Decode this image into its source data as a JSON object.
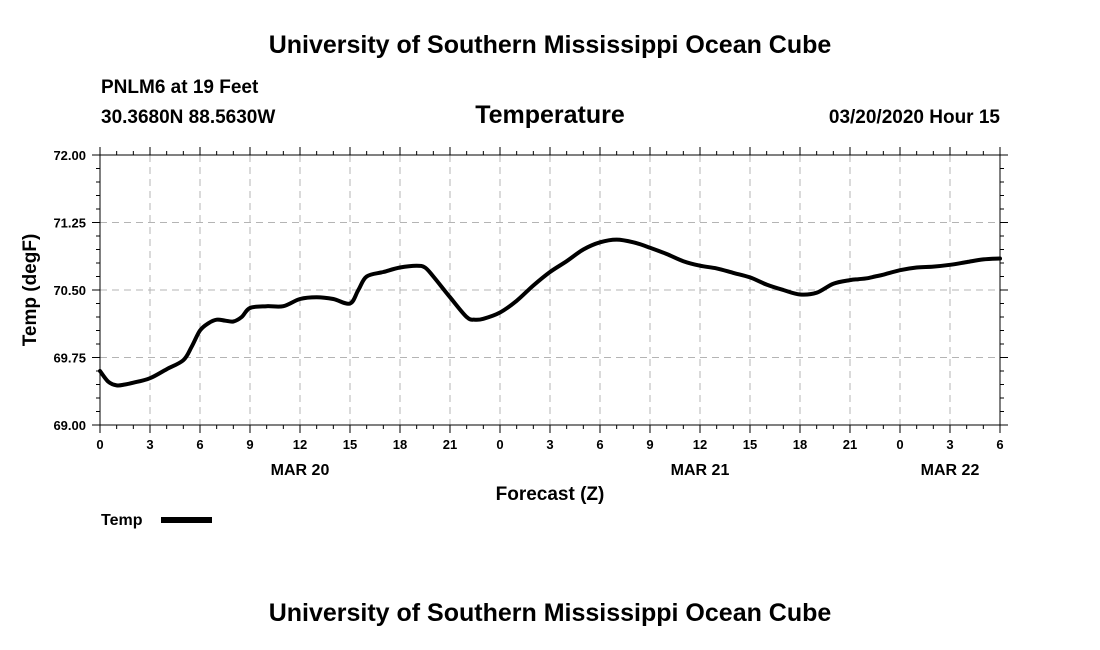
{
  "header": {
    "title": "University of Southern Mississippi Ocean Cube",
    "station": "PNLM6 at 19 Feet",
    "coords": "30.3680N 88.5630W",
    "datetime": "03/20/2020 Hour 15"
  },
  "footer": {
    "title": "University of Southern Mississippi Ocean Cube"
  },
  "colors": {
    "line": "#000000",
    "grid": "#b4b4b4"
  },
  "chart_data": {
    "type": "line",
    "title": "Temperature",
    "ylabel": "Temp (degF)",
    "xlabel": "Forecast (Z)",
    "ylim": [
      69.0,
      72.0
    ],
    "yticks": [
      "69.00",
      "69.75",
      "70.50",
      "71.25",
      "72.00"
    ],
    "xlim": [
      0,
      54
    ],
    "xtick_labels": [
      "0",
      "3",
      "6",
      "9",
      "12",
      "15",
      "18",
      "21",
      "0",
      "3",
      "6",
      "9",
      "12",
      "15",
      "18",
      "21",
      "0",
      "3",
      "6"
    ],
    "date_labels": [
      {
        "label": "MAR 20",
        "at": 12
      },
      {
        "label": "MAR 21",
        "at": 36
      },
      {
        "label": "MAR 22",
        "at": 51
      }
    ],
    "grid": true,
    "legend_placement": "bottom-left",
    "series": [
      {
        "name": "Temp",
        "x": [
          0,
          0.5,
          1,
          1.5,
          2,
          3,
          4,
          5,
          5.5,
          6,
          6.5,
          7,
          7.5,
          8,
          8.5,
          9,
          10,
          11,
          12,
          13,
          14,
          15,
          15.5,
          16,
          17,
          18,
          19,
          19.5,
          20,
          21,
          22,
          22.5,
          23,
          24,
          25,
          26,
          27,
          28,
          29,
          30,
          31,
          32,
          33,
          34,
          35,
          36,
          37,
          38,
          39,
          40,
          41,
          42,
          43,
          44,
          45,
          45.5,
          46,
          46.5,
          47,
          48,
          49,
          50,
          51,
          52,
          53,
          54
        ],
        "y": [
          69.6,
          69.48,
          69.44,
          69.45,
          69.47,
          69.52,
          69.62,
          69.72,
          69.87,
          70.05,
          70.13,
          70.17,
          70.16,
          70.15,
          70.2,
          70.3,
          70.32,
          70.32,
          70.4,
          70.42,
          70.4,
          70.35,
          70.5,
          70.65,
          70.7,
          70.75,
          70.77,
          70.75,
          70.65,
          70.42,
          70.2,
          70.17,
          70.18,
          70.25,
          70.38,
          70.55,
          70.7,
          70.82,
          70.95,
          71.03,
          71.06,
          71.03,
          70.97,
          70.9,
          70.82,
          70.77,
          70.74,
          70.69,
          70.64,
          70.56,
          70.5,
          70.45,
          70.47,
          70.57,
          70.61,
          70.62,
          70.63,
          70.65,
          70.67,
          70.72,
          70.75,
          70.76,
          70.78,
          70.81,
          70.84,
          70.85
        ]
      }
    ]
  }
}
